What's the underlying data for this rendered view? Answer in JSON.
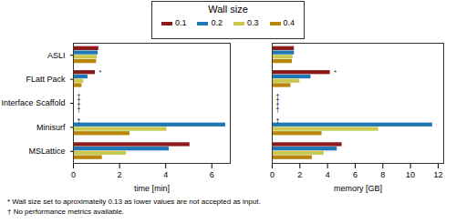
{
  "legend_title": "Wall size",
  "chart_data": [
    {
      "type": "bar",
      "orientation": "horizontal",
      "legend": "top",
      "xlabel": "time [min]",
      "categories": [
        "ASLI",
        "FLatt Pack",
        "Interface Scaffold",
        "Minisurf",
        "MSLattice"
      ],
      "xlim": [
        0,
        6.8
      ],
      "xticks": [
        0,
        2,
        4,
        6
      ],
      "series": [
        {
          "name": "0.1",
          "color": "#8b1a1a",
          "values": [
            1.1,
            0.95,
            null,
            null,
            5.05
          ]
        },
        {
          "name": "0.2",
          "color": "#1f78b4",
          "values": [
            1.07,
            0.63,
            null,
            6.6,
            4.15
          ]
        },
        {
          "name": "0.3",
          "color": "#c9c94f",
          "values": [
            1.03,
            0.45,
            null,
            4.05,
            2.3
          ]
        },
        {
          "name": "0.4",
          "color": "#b8860b",
          "values": [
            1.0,
            0.37,
            null,
            2.45,
            1.25
          ]
        }
      ],
      "annotations": [
        {
          "category": "FLatt Pack",
          "series": "0.1",
          "text": "*"
        },
        {
          "category": "Interface Scaffold",
          "series": "0.1",
          "text": "†"
        },
        {
          "category": "Interface Scaffold",
          "series": "0.2",
          "text": "†"
        },
        {
          "category": "Interface Scaffold",
          "series": "0.3",
          "text": "†"
        },
        {
          "category": "Interface Scaffold",
          "series": "0.4",
          "text": "†"
        },
        {
          "category": "Minisurf",
          "series": "0.1",
          "text": "†"
        }
      ]
    },
    {
      "type": "bar",
      "orientation": "horizontal",
      "xlabel": "memory [GB]",
      "tick_labels": "x",
      "categories": [
        "ASLI",
        "FLatt Pack",
        "Interface Scaffold",
        "Minisurf",
        "MSLattice"
      ],
      "xlim": [
        0,
        12.4
      ],
      "xticks": [
        0,
        2,
        4,
        6,
        8,
        10,
        12
      ],
      "series": [
        {
          "name": "0.1",
          "color": "#8b1a1a",
          "values": [
            1.6,
            4.2,
            null,
            null,
            5.05
          ]
        },
        {
          "name": "0.2",
          "color": "#1f78b4",
          "values": [
            1.6,
            2.8,
            null,
            11.6,
            4.7
          ]
        },
        {
          "name": "0.3",
          "color": "#c9c94f",
          "values": [
            1.5,
            2.0,
            null,
            7.7,
            3.75
          ]
        },
        {
          "name": "0.4",
          "color": "#b8860b",
          "values": [
            1.45,
            1.35,
            null,
            3.6,
            2.9
          ]
        }
      ],
      "annotations": [
        {
          "category": "FLatt Pack",
          "series": "0.1",
          "text": "*"
        },
        {
          "category": "Interface Scaffold",
          "series": "0.1",
          "text": "†"
        },
        {
          "category": "Interface Scaffold",
          "series": "0.2",
          "text": "†"
        },
        {
          "category": "Interface Scaffold",
          "series": "0.3",
          "text": "†"
        },
        {
          "category": "Interface Scaffold",
          "series": "0.4",
          "text": "†"
        },
        {
          "category": "Minisurf",
          "series": "0.1",
          "text": "†"
        }
      ]
    }
  ],
  "notes": [
    "* Wall size set to aproximatelly 0.13 as lower values are not accepted as input.",
    "† No performance metrics available."
  ]
}
